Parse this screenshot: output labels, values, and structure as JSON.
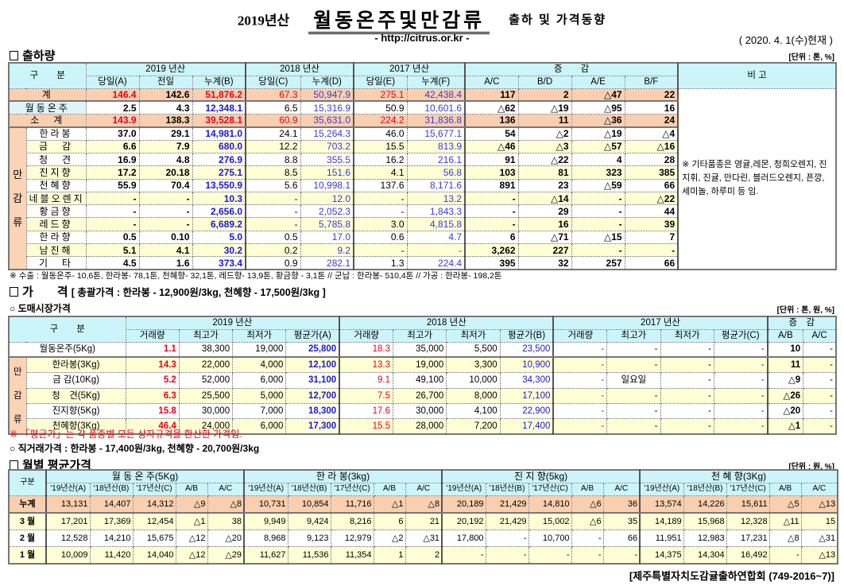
{
  "header": {
    "year_prefix": "2019년산",
    "title": "월동온주및만감류",
    "subtitle": "출하 및 가격동향",
    "url": "- http://citrus.or.kr -",
    "as_of": "( 2020. 4. 1(수)현재 )"
  },
  "shipments": {
    "section_title": "출하량",
    "unit": "[단위 : 톤, %]",
    "head_category": "구　　분",
    "year_2019": "2019 년산",
    "year_2018": "2018 년산",
    "year_2017": "2017 년산",
    "change": "증　　감",
    "remark_head": "비 고",
    "subheads": [
      "당일(A)",
      "전일",
      "누계(B)",
      "당일(C)",
      "누계(D)",
      "당일(E)",
      "누계(F)",
      "A/C",
      "B/D",
      "A/E",
      "B/F"
    ],
    "group_label": [
      "만",
      "감",
      "류"
    ],
    "rows": [
      [
        "계",
        "146.4",
        "142.6",
        "51,876.2",
        "67.3",
        "50,947.9",
        "275.1",
        "42,438.4",
        "117",
        "2",
        "△47",
        "22"
      ],
      [
        "월동온주",
        "2.5",
        "4.3",
        "12,348.1",
        "6.5",
        "15,316.9",
        "50.9",
        "10,601.6",
        "△62",
        "△19",
        "△95",
        "16"
      ],
      [
        "소　계",
        "143.9",
        "138.3",
        "39,528.1",
        "60.9",
        "35,631.0",
        "224.2",
        "31,836.8",
        "136",
        "11",
        "△36",
        "24"
      ],
      [
        "한라봉",
        "37.0",
        "29.1",
        "14,981.0",
        "24.1",
        "15,264.3",
        "46.0",
        "15,677.1",
        "54",
        "△2",
        "△19",
        "△4"
      ],
      [
        "금　감",
        "6.6",
        "7.9",
        "680.0",
        "12.2",
        "703.2",
        "15.5",
        "813.9",
        "△46",
        "△3",
        "△57",
        "△16"
      ],
      [
        "청　견",
        "16.9",
        "4.8",
        "276.9",
        "8.8",
        "355.5",
        "16.2",
        "216.1",
        "91",
        "△22",
        "4",
        "28"
      ],
      [
        "진지향",
        "17.2",
        "20.18",
        "275.1",
        "8.5",
        "151.6",
        "4.1",
        "56.8",
        "103",
        "81",
        "323",
        "385"
      ],
      [
        "천혜향",
        "55.9",
        "70.4",
        "13,550.9",
        "5.6",
        "10,998.1",
        "137.6",
        "8,171.6",
        "891",
        "23",
        "△59",
        "66"
      ],
      [
        "네블오렌지",
        "-",
        "-",
        "10.3",
        "-",
        "12.0",
        "-",
        "13.2",
        "-",
        "△14",
        "-",
        "△22"
      ],
      [
        "황금향",
        "-",
        "-",
        "2,656.0",
        "-",
        "2,052.3",
        "-",
        "1,843.3",
        "-",
        "29",
        "-",
        "44"
      ],
      [
        "레드향",
        "-",
        "-",
        "6,689.2",
        "-",
        "5,785.8",
        "3.0",
        "4,815.8",
        "-",
        "16",
        "-",
        "39"
      ],
      [
        "한라향",
        "0.5",
        "0.10",
        "5.0",
        "0.5",
        "17.0",
        "0.6",
        "4.7",
        "6",
        "△71",
        "△15",
        "7"
      ],
      [
        "남진해",
        "5.1",
        "4.1",
        "30.2",
        "0.2",
        "9.2",
        "-",
        "-",
        "3,262",
        "227",
        "-",
        "-"
      ],
      [
        "기　타",
        "4.5",
        "1.6",
        "373.4",
        "0.9",
        "282.1",
        "1.3",
        "224.4",
        "395",
        "32",
        "257",
        "66"
      ]
    ],
    "remark": "※ 기타품종은 영귤,레몬, 청희오렌지, 진지휘, 진귤, 만다린, 블러드오렌지, 픈깡,세미놀, 하루미 등 임.",
    "footnote": "※ 수출 : 월동온주- 10,6톤, 한라봉- 78,1톤, 천혜향- 32,1톤, 레드향- 13,9톤, 황금향 - 3,1톤  // 군납 : 한라봉- 510,4톤 // 가공 : 한라봉- 198,2톤"
  },
  "prices": {
    "section_title": "가　　격",
    "auction_price": "[ 총괄가격 : 한라봉 - 12,900원/3kg, 천혜향 - 17,500원/3kg ]",
    "wholesale": {
      "title": "○ 도매시장가격",
      "unit": "[단위 : 톤, 원, %]",
      "head_category": "구　　분",
      "year_2019": "2019 년산",
      "year_2018": "2018 년산",
      "year_2017": "2017 년산",
      "change": "증　감",
      "subheads": [
        "거래량",
        "최고가",
        "최저가",
        "평균가(A)",
        "거래량",
        "최고가",
        "최저가",
        "평균가(B)",
        "거래량",
        "최고가",
        "최저가",
        "평균가(C)",
        "A/B",
        "A/C"
      ],
      "group_label": [
        "만",
        "감",
        "류"
      ],
      "rows": [
        [
          "월동온주(5Kg)",
          "1.1",
          "38,300",
          "19,000",
          "25,800",
          "18.3",
          "35,000",
          "5,500",
          "23,500",
          "-",
          "-",
          "-",
          "-",
          "10",
          "-"
        ],
        [
          "한라봉(3Kg)",
          "14.3",
          "22,000",
          "4,000",
          "12,100",
          "13.3",
          "19,000",
          "3,300",
          "10,900",
          "-",
          "-",
          "-",
          "-",
          "11",
          "-"
        ],
        [
          "금 감(10Kg)",
          "5.2",
          "52,000",
          "6,000",
          "31,100",
          "9.1",
          "49,100",
          "10,000",
          "34,300",
          "-",
          "일요일",
          "-",
          "-",
          "△9",
          "-"
        ],
        [
          "청　견(5Kg)",
          "6.3",
          "25,500",
          "5,000",
          "12,700",
          "7.5",
          "26,700",
          "8,000",
          "17,100",
          "-",
          "-",
          "-",
          "-",
          "△26",
          "-"
        ],
        [
          "진지향(5Kg)",
          "15.8",
          "30,000",
          "7,000",
          "18,300",
          "17.6",
          "30,000",
          "4,100",
          "22,900",
          "-",
          "-",
          "-",
          "-",
          "△20",
          "-"
        ],
        [
          "천혜향(3Kg)",
          "46.4",
          "24,000",
          "6,000",
          "17,300",
          "15.5",
          "28,000",
          "7,200",
          "17,400",
          "-",
          "-",
          "-",
          "-",
          "△1",
          "-"
        ]
      ],
      "note": "※ 「평균가」는 각 품종별 모든 상자규격을 환산한 가격임."
    },
    "direct": "○ 직거래가격 : 한라봉 - 17,400원/3kg,  천혜향 - 20,700원/3kg"
  },
  "monthly": {
    "section_title": "월별 평균가격",
    "unit": "[단위 : 원, %]",
    "head_category": "구분",
    "groups": [
      "월 동 온 주(5Kg)",
      "한 라 봉(3kg)",
      "진 지 향(5kg)",
      "천 혜 향(3Kg)"
    ],
    "subheads": [
      "'19년산(A)",
      "'18년산(B)",
      "'17년산(C)",
      "A/B",
      "A/C"
    ],
    "rows": [
      [
        "누계",
        "13,131",
        "14,407",
        "14,312",
        "△9",
        "△8",
        "10,731",
        "10,854",
        "11,716",
        "△1",
        "△8",
        "20,189",
        "21,429",
        "14,810",
        "△6",
        "36",
        "13,574",
        "14,226",
        "15,611",
        "△5",
        "△13"
      ],
      [
        "3 월",
        "17,201",
        "17,369",
        "12,454",
        "△1",
        "38",
        "9,949",
        "9,424",
        "8,216",
        "6",
        "21",
        "20,192",
        "21,429",
        "15,002",
        "△6",
        "35",
        "14,189",
        "15,968",
        "12,328",
        "△11",
        "15"
      ],
      [
        "2 월",
        "12,528",
        "14,210",
        "15,675",
        "△12",
        "△20",
        "8,968",
        "9,123",
        "12,979",
        "△2",
        "△31",
        "17,800",
        "-",
        "10,700",
        "-",
        "66",
        "11,951",
        "12,983",
        "17,231",
        "△8",
        "△31"
      ],
      [
        "1 월",
        "10,009",
        "11,420",
        "14,040",
        "△12",
        "△29",
        "11,627",
        "11,536",
        "11,354",
        "1",
        "2",
        "-",
        "-",
        "-",
        "-",
        "-",
        "14,375",
        "14,304",
        "16,492",
        "-",
        "△13"
      ]
    ]
  },
  "footer": "[제주특별자치도감귤출하연합회 (749-2016~7)]",
  "colors": {
    "header_bg": "#ccf5fb",
    "total_bg": "#f9cfb0",
    "alt_row_bg": "#ffffd6",
    "red": "#e8001c",
    "blue": "#1a1acc"
  }
}
